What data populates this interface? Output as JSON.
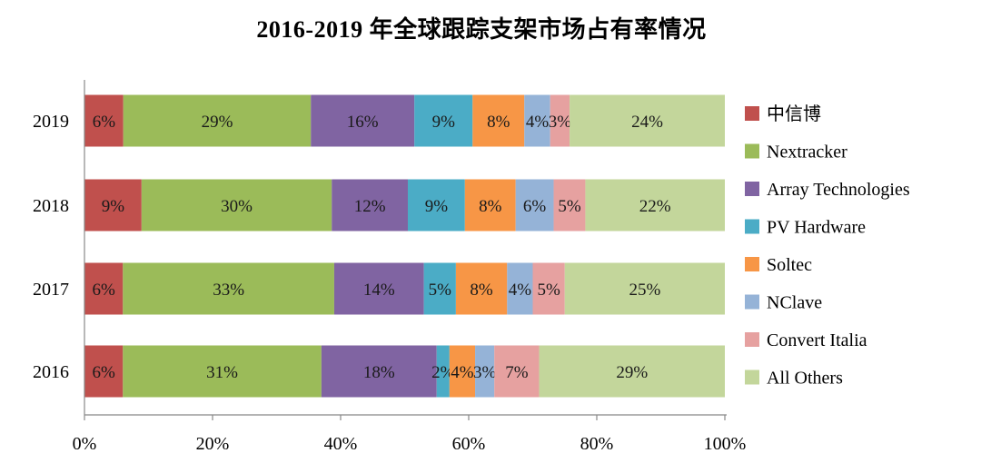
{
  "chart_data": {
    "type": "bar",
    "orientation": "horizontal",
    "stacked": true,
    "title": "2016-2019 年全球跟踪支架市场占有率情况",
    "categories": [
      "2019",
      "2018",
      "2017",
      "2016"
    ],
    "series": [
      {
        "name": "中信博",
        "color": "#c0504d",
        "values": [
          6,
          9,
          6,
          6
        ],
        "labels": [
          "6%",
          "9%",
          "6%",
          "6%"
        ]
      },
      {
        "name": "Nextracker",
        "color": "#9bbb59",
        "values": [
          29,
          30,
          33,
          31
        ],
        "labels": [
          "29%",
          "30%",
          "33%",
          "31%"
        ]
      },
      {
        "name": "Array Technologies",
        "color": "#8064a2",
        "values": [
          16,
          12,
          14,
          18
        ],
        "labels": [
          "16%",
          "12%",
          "14%",
          "18%"
        ]
      },
      {
        "name": "PV Hardware",
        "color": "#4bacc6",
        "values": [
          9,
          9,
          5,
          2
        ],
        "labels": [
          "9%",
          "9%",
          "5%",
          "2%"
        ]
      },
      {
        "name": "Soltec",
        "color": "#f79646",
        "values": [
          8,
          8,
          8,
          4
        ],
        "labels": [
          "8%",
          "8%",
          "8%",
          "4%"
        ]
      },
      {
        "name": "NClave",
        "color": "#95b3d7",
        "values": [
          4,
          6,
          4,
          3
        ],
        "labels": [
          "4%",
          "6%",
          "4%",
          "3%"
        ]
      },
      {
        "name": "Convert Italia",
        "color": "#e6a1a0",
        "values": [
          3,
          5,
          5,
          7
        ],
        "labels": [
          "3%",
          "5%",
          "5%",
          "7%"
        ]
      },
      {
        "name": "All Others",
        "color": "#c3d69b",
        "values": [
          24,
          22,
          25,
          29
        ],
        "labels": [
          "24%",
          "22%",
          "25%",
          "29%"
        ]
      }
    ],
    "xlim": [
      0,
      100
    ],
    "x_ticks": [
      "0%",
      "20%",
      "40%",
      "60%",
      "80%",
      "100%"
    ],
    "grid": false,
    "legend_position": "right"
  }
}
